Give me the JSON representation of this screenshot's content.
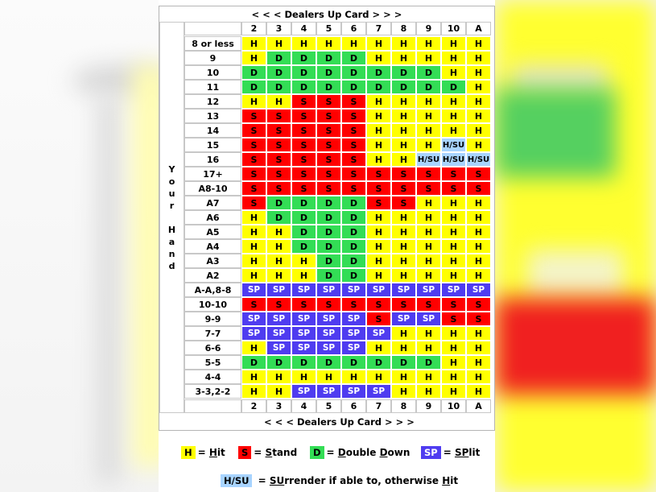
{
  "title_top": "< < <  Dealers Up Card  > > >",
  "title_bottom": "< < < Dealers Up Card > > >",
  "side_label": [
    "Y",
    "o",
    "u",
    "r",
    "",
    "H",
    "a",
    "n",
    "d"
  ],
  "dealer_cards": [
    "2",
    "3",
    "4",
    "5",
    "6",
    "7",
    "8",
    "9",
    "10",
    "A"
  ],
  "rows": [
    {
      "hand": "8 or less",
      "actions": [
        "H",
        "H",
        "H",
        "H",
        "H",
        "H",
        "H",
        "H",
        "H",
        "H"
      ]
    },
    {
      "hand": "9",
      "actions": [
        "H",
        "D",
        "D",
        "D",
        "D",
        "H",
        "H",
        "H",
        "H",
        "H"
      ]
    },
    {
      "hand": "10",
      "actions": [
        "D",
        "D",
        "D",
        "D",
        "D",
        "D",
        "D",
        "D",
        "H",
        "H"
      ]
    },
    {
      "hand": "11",
      "actions": [
        "D",
        "D",
        "D",
        "D",
        "D",
        "D",
        "D",
        "D",
        "D",
        "H"
      ]
    },
    {
      "hand": "12",
      "actions": [
        "H",
        "H",
        "S",
        "S",
        "S",
        "H",
        "H",
        "H",
        "H",
        "H"
      ]
    },
    {
      "hand": "13",
      "actions": [
        "S",
        "S",
        "S",
        "S",
        "S",
        "H",
        "H",
        "H",
        "H",
        "H"
      ]
    },
    {
      "hand": "14",
      "actions": [
        "S",
        "S",
        "S",
        "S",
        "S",
        "H",
        "H",
        "H",
        "H",
        "H"
      ]
    },
    {
      "hand": "15",
      "actions": [
        "S",
        "S",
        "S",
        "S",
        "S",
        "H",
        "H",
        "H",
        "H/SU",
        "H"
      ]
    },
    {
      "hand": "16",
      "actions": [
        "S",
        "S",
        "S",
        "S",
        "S",
        "H",
        "H",
        "H/SU",
        "H/SU",
        "H/SU"
      ]
    },
    {
      "hand": "17+",
      "actions": [
        "S",
        "S",
        "S",
        "S",
        "S",
        "S",
        "S",
        "S",
        "S",
        "S"
      ]
    },
    {
      "hand": "A8-10",
      "actions": [
        "S",
        "S",
        "S",
        "S",
        "S",
        "S",
        "S",
        "S",
        "S",
        "S"
      ]
    },
    {
      "hand": "A7",
      "actions": [
        "S",
        "D",
        "D",
        "D",
        "D",
        "S",
        "S",
        "H",
        "H",
        "H"
      ]
    },
    {
      "hand": "A6",
      "actions": [
        "H",
        "D",
        "D",
        "D",
        "D",
        "H",
        "H",
        "H",
        "H",
        "H"
      ]
    },
    {
      "hand": "A5",
      "actions": [
        "H",
        "H",
        "D",
        "D",
        "D",
        "H",
        "H",
        "H",
        "H",
        "H"
      ]
    },
    {
      "hand": "A4",
      "actions": [
        "H",
        "H",
        "D",
        "D",
        "D",
        "H",
        "H",
        "H",
        "H",
        "H"
      ]
    },
    {
      "hand": "A3",
      "actions": [
        "H",
        "H",
        "H",
        "D",
        "D",
        "H",
        "H",
        "H",
        "H",
        "H"
      ]
    },
    {
      "hand": "A2",
      "actions": [
        "H",
        "H",
        "H",
        "D",
        "D",
        "H",
        "H",
        "H",
        "H",
        "H"
      ]
    },
    {
      "hand": "A-A,8-8",
      "actions": [
        "SP",
        "SP",
        "SP",
        "SP",
        "SP",
        "SP",
        "SP",
        "SP",
        "SP",
        "SP"
      ]
    },
    {
      "hand": "10-10",
      "actions": [
        "S",
        "S",
        "S",
        "S",
        "S",
        "S",
        "S",
        "S",
        "S",
        "S"
      ]
    },
    {
      "hand": "9-9",
      "actions": [
        "SP",
        "SP",
        "SP",
        "SP",
        "SP",
        "S",
        "SP",
        "SP",
        "S",
        "S"
      ]
    },
    {
      "hand": "7-7",
      "actions": [
        "SP",
        "SP",
        "SP",
        "SP",
        "SP",
        "SP",
        "H",
        "H",
        "H",
        "H"
      ]
    },
    {
      "hand": "6-6",
      "actions": [
        "H",
        "SP",
        "SP",
        "SP",
        "SP",
        "H",
        "H",
        "H",
        "H",
        "H"
      ]
    },
    {
      "hand": "5-5",
      "actions": [
        "D",
        "D",
        "D",
        "D",
        "D",
        "D",
        "D",
        "D",
        "H",
        "H"
      ]
    },
    {
      "hand": "4-4",
      "actions": [
        "H",
        "H",
        "H",
        "H",
        "H",
        "H",
        "H",
        "H",
        "H",
        "H"
      ]
    },
    {
      "hand": "3-3,2-2",
      "actions": [
        "H",
        "H",
        "SP",
        "SP",
        "SP",
        "SP",
        "H",
        "H",
        "H",
        "H"
      ]
    }
  ],
  "legend": {
    "hit": {
      "code": "H",
      "eq": "= ",
      "key": "H",
      "rest": "it"
    },
    "stand": {
      "code": "S",
      "eq": "= ",
      "key": "S",
      "rest": "tand"
    },
    "double": {
      "code": "D",
      "eq": "= ",
      "key1": "D",
      "mid": "ouble ",
      "key2": "D",
      "rest": "own"
    },
    "split": {
      "code": "SP",
      "eq": "= ",
      "key": "SP",
      "rest": "lit"
    },
    "surrender": {
      "code": "H/SU",
      "eq": " = ",
      "key": "SU",
      "rest": "rrender if able to, otherwise ",
      "key2": "H",
      "rest2": "it"
    }
  },
  "colors": {
    "hit": "#ffff00",
    "stand": "#ff0000",
    "double": "#33dd55",
    "split": "#4f3cf0",
    "surrender": "#a8d4ff"
  }
}
